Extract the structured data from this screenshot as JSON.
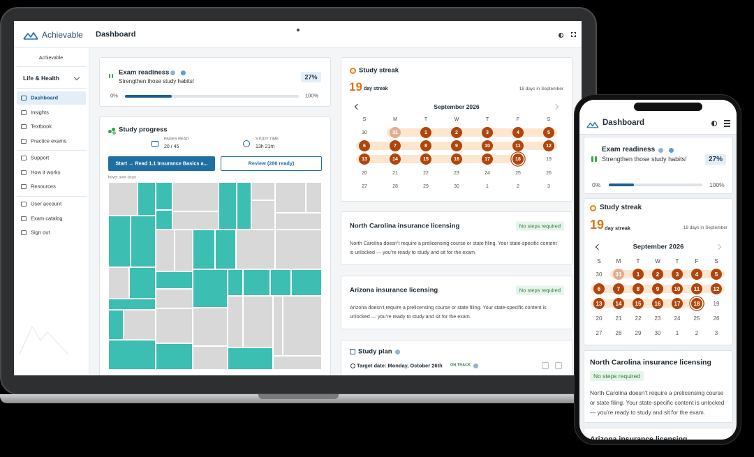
{
  "brand": "Achievable",
  "page_title": "Dashboard",
  "sidebar": {
    "org": "Achievable",
    "course": "Life & Health",
    "nav": [
      "Dashboard",
      "Insights",
      "Textbook",
      "Practice exams",
      "Support",
      "How it works",
      "Resources",
      "User account",
      "Exam catalog",
      "Sign out"
    ]
  },
  "readiness": {
    "title": "Exam readiness",
    "subtitle": "Strengthen those study habits!",
    "value": 27,
    "value_label": "27%",
    "scale": [
      {
        "value": 0,
        "label": "0%"
      },
      {
        "value": 100,
        "label": "100%"
      }
    ]
  },
  "progress": {
    "title": "Study progress",
    "pages_label": "PAGES READ",
    "pages": "20 / 45",
    "time_label": "STUDY TIME",
    "time": "13h 21m",
    "start_button": "Start → Read 1.1 Insurance Basics a...",
    "review_button": "Review (286 ready)",
    "chart_hint": "hover over chart"
  },
  "streak": {
    "title": "Study streak",
    "count": 19,
    "count_label": "day streak",
    "month_summary": "18 days in September",
    "month": "September 2026",
    "weekdays": [
      "S",
      "M",
      "T",
      "W",
      "T",
      "F",
      "S"
    ],
    "weeks": [
      [
        30,
        31,
        1,
        2,
        3,
        4,
        5
      ],
      [
        6,
        7,
        8,
        9,
        10,
        11,
        12
      ],
      [
        13,
        14,
        15,
        16,
        17,
        18,
        19
      ],
      [
        20,
        21,
        22,
        23,
        24,
        25,
        26
      ],
      [
        27,
        28,
        29,
        30,
        1,
        2,
        3
      ]
    ]
  },
  "licensing": [
    {
      "title": "North Carolina insurance licensing",
      "status": "No steps required",
      "text": "North Carolina doesn’t require a prelicensing course or state filing. Your state-specific content is unlocked — you’re ready to study and sit for the exam."
    },
    {
      "title": "Arizona insurance licensing",
      "status": "No steps required",
      "text": "Arizona doesn’t require a prelicensing course or state filing. Your state-specific content is unlocked — you’re ready to study and sit for the exam."
    }
  ],
  "study_plan": {
    "title": "Study plan",
    "target": "Target date: Monday, October 26th",
    "status": "ON TRACK"
  }
}
